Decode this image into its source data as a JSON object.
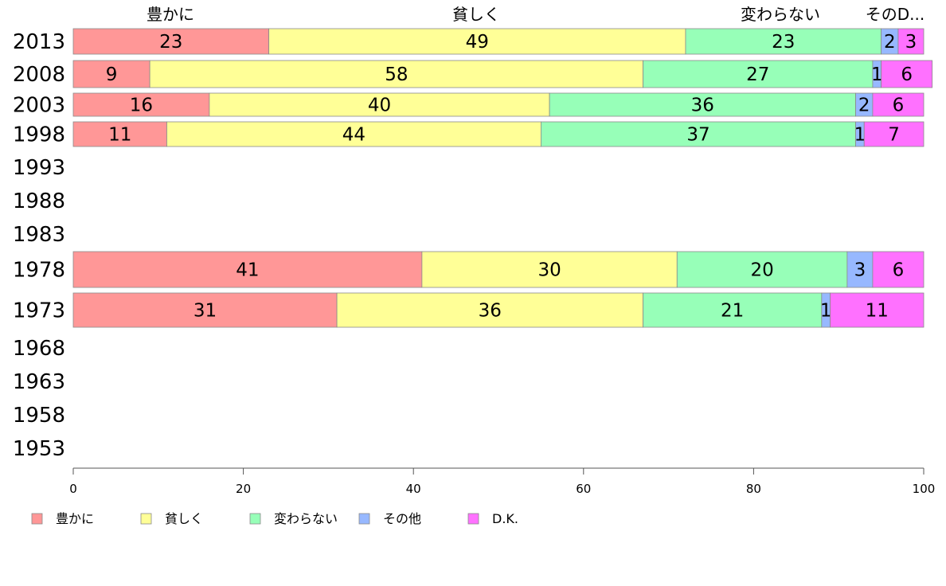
{
  "chart_data": {
    "type": "bar",
    "orientation": "horizontal",
    "stacked": true,
    "title": "",
    "xlabel": "",
    "ylabel": "",
    "xlim": [
      0,
      100
    ],
    "x_ticks": [
      "0",
      "20",
      "40",
      "60",
      "80",
      "100"
    ],
    "header_labels": [
      "豊かに",
      "貧しく",
      "変わらない",
      "そのD..."
    ],
    "categories": [
      "2013",
      "2008",
      "2003",
      "1998",
      "1993",
      "1988",
      "1983",
      "1978",
      "1973",
      "1968",
      "1963",
      "1958",
      "1953"
    ],
    "series": [
      {
        "name": "豊かに",
        "color": "#ff9797",
        "values": [
          23,
          9,
          16,
          11,
          null,
          null,
          null,
          41,
          31,
          null,
          null,
          null,
          null
        ]
      },
      {
        "name": "貧しく",
        "color": "#ffff97",
        "values": [
          49,
          58,
          40,
          44,
          null,
          null,
          null,
          30,
          36,
          null,
          null,
          null,
          null
        ]
      },
      {
        "name": "変わらない",
        "color": "#97ffb8",
        "values": [
          23,
          27,
          36,
          37,
          null,
          null,
          null,
          20,
          21,
          null,
          null,
          null,
          null
        ]
      },
      {
        "name": "その他",
        "color": "#97b8ff",
        "values": [
          2,
          1,
          2,
          1,
          null,
          null,
          null,
          3,
          1,
          null,
          null,
          null,
          null
        ]
      },
      {
        "name": "D.K.",
        "color": "#ff71ff",
        "values": [
          3,
          6,
          6,
          7,
          null,
          null,
          null,
          6,
          11,
          null,
          null,
          null,
          null
        ]
      }
    ],
    "grid": false,
    "legend_position": "bottom"
  }
}
